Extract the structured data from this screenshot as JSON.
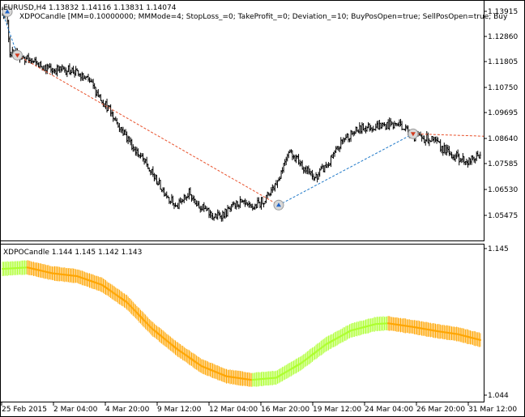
{
  "main": {
    "header": "EURUSD,H4  1.13832 1.14116 1.13831 1.14074",
    "ea_label": "XDPOCandle [MM=0.10000000; MMMode=4; StopLoss_=0; TakeProfit_=0; Deviation_=10; BuyPosOpen=true; SellPosOpen=true; Buy",
    "price_labels": [
      "1.13915",
      "1.12860",
      "1.11805",
      "1.10750",
      "1.09695",
      "1.08640",
      "1.07585",
      "1.06530",
      "1.05475"
    ],
    "colors": {
      "buy_line": "#1e78c8",
      "sell_line": "#e8502a",
      "bars": "#000000"
    }
  },
  "indicator": {
    "header": "XDPOCandle 1.144 1.145 1.142 1.143",
    "price_labels": [
      "1.145",
      "1.044"
    ],
    "colors": {
      "falling": "#ffa500",
      "rising": "#adff2f"
    }
  },
  "time_labels": [
    "25 Feb 2015",
    "2 Mar 04:00",
    "4 Mar 20:00",
    "9 Mar 12:00",
    "12 Mar 04:00",
    "16 Mar 20:00",
    "19 Mar 12:00",
    "24 Mar 04:00",
    "26 Mar 20:00",
    "31 Mar 12:00"
  ],
  "chart_data": {
    "type": "candlestick",
    "symbol": "EURUSD",
    "timeframe": "H4",
    "ylim": [
      1.0488,
      1.1445
    ],
    "close_path": [
      [
        0,
        1.14
      ],
      [
        4,
        1.136
      ],
      [
        6,
        1.122
      ],
      [
        12,
        1.121
      ],
      [
        25,
        1.118
      ],
      [
        40,
        1.115
      ],
      [
        55,
        1.115
      ],
      [
        70,
        1.11
      ],
      [
        85,
        1.099
      ],
      [
        100,
        1.087
      ],
      [
        115,
        1.076
      ],
      [
        128,
        1.066
      ],
      [
        140,
        1.058
      ],
      [
        150,
        1.064
      ],
      [
        160,
        1.058
      ],
      [
        170,
        1.054
      ],
      [
        180,
        1.056
      ],
      [
        190,
        1.06
      ],
      [
        200,
        1.0575
      ],
      [
        212,
        1.062
      ],
      [
        222,
        1.07
      ],
      [
        230,
        1.082
      ],
      [
        240,
        1.076
      ],
      [
        250,
        1.07
      ],
      [
        262,
        1.076
      ],
      [
        275,
        1.087
      ],
      [
        290,
        1.091
      ],
      [
        305,
        1.092
      ],
      [
        320,
        1.0925
      ],
      [
        330,
        1.0875
      ],
      [
        345,
        1.086
      ],
      [
        360,
        1.08
      ],
      [
        375,
        1.077
      ],
      [
        384,
        1.08
      ]
    ],
    "trades": [
      {
        "type": "buy",
        "bar": 0,
        "price": 1.139
      },
      {
        "type": "sell",
        "bar": 12,
        "price": 1.121
      },
      {
        "type": "buy",
        "bar": 222,
        "price": 1.059
      },
      {
        "type": "sell",
        "bar": 330,
        "price": 1.0885
      }
    ],
    "indicator": {
      "name": "XDPOCandle",
      "values": [
        1.144,
        1.145,
        1.142,
        1.143
      ],
      "ylim": [
        1.044,
        1.145
      ],
      "path": [
        [
          0,
          1.131
        ],
        [
          20,
          1.132
        ],
        [
          40,
          1.128
        ],
        [
          60,
          1.126
        ],
        [
          80,
          1.12
        ],
        [
          100,
          1.108
        ],
        [
          120,
          1.09
        ],
        [
          140,
          1.076
        ],
        [
          160,
          1.064
        ],
        [
          180,
          1.057
        ],
        [
          200,
          1.0545
        ],
        [
          220,
          1.056
        ],
        [
          240,
          1.066
        ],
        [
          260,
          1.079
        ],
        [
          280,
          1.0885
        ],
        [
          300,
          1.093
        ],
        [
          310,
          1.0935
        ],
        [
          330,
          1.091
        ],
        [
          350,
          1.088
        ],
        [
          366,
          1.086
        ],
        [
          384,
          1.082
        ]
      ]
    }
  }
}
